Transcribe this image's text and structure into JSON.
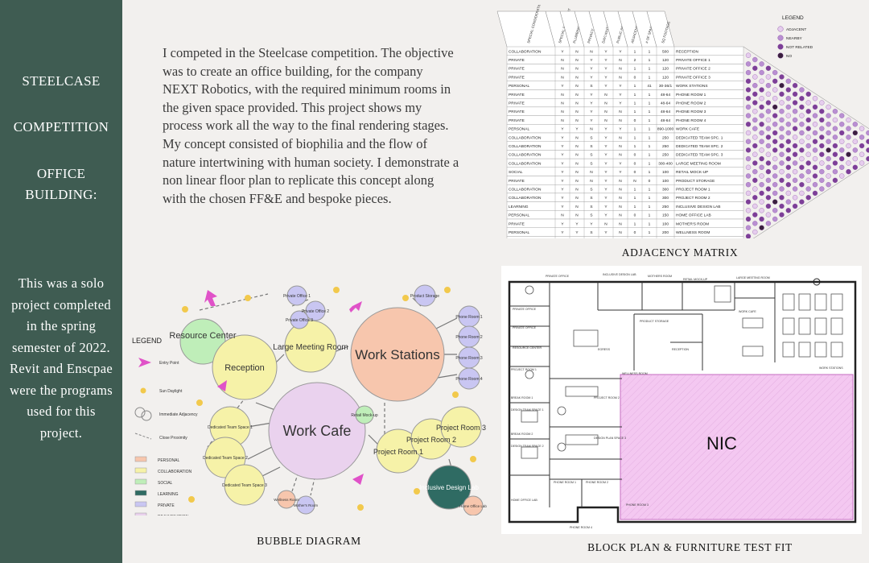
{
  "sidebar": {
    "title1": "STEELCASE",
    "title2": "COMPETITION",
    "title3": "OFFICE",
    "title4": "BUILDING:",
    "note": "This was a solo project completed in the spring semester of 2022. Revit and Enscpae were the programs used for this project."
  },
  "intro": "I competed in the Steelcase competition. The objective was to create an office building, for the company NEXT Robotics, with the required minimum rooms in the given space provided. This project shows my process work all the way to the final rendering stages. My concept consisted of biophilia and the flow of nature intertwining with human society. I demonstrate a non linear floor plan to replicate this concept along with the chosen FF&E and bespoke pieces.",
  "captions": {
    "matrix": "ADJACENCY MATRIX",
    "bubble": "BUBBLE DIAGRAM",
    "plan": "BLOCK PLAN & FURNITURE TEST FIT"
  },
  "matrix": {
    "headers": [
      "SPECIAL CONSIDERATIONS",
      "SPECIAL EQUIPMENT",
      "PLUMBING",
      "PRIVACY",
      "DAYLIGHT/VIEW",
      "PUBLIC ACCESS",
      "ADJACENCIES",
      "# OF SPACES",
      "SQ FOOTAGE"
    ],
    "legend_title": "LEGEND",
    "legend": [
      {
        "label": "ADJACENT",
        "color": "#e6cdee"
      },
      {
        "label": "NEARBY",
        "color": "#b98fd2"
      },
      {
        "label": "NOT RELATED",
        "color": "#7d3f98"
      },
      {
        "label": "NO",
        "color": "#3a1f3e"
      }
    ],
    "rows": [
      [
        "COLLABORATION",
        "Y",
        "N",
        "N",
        "Y",
        "Y",
        "1",
        "1",
        "500",
        "RECEPTION"
      ],
      [
        "PRIVATE",
        "N",
        "N",
        "Y",
        "Y",
        "N",
        "2",
        "1",
        "120",
        "PRIVATE OFFICE 1"
      ],
      [
        "PRIVATE",
        "N",
        "N",
        "Y",
        "Y",
        "N",
        "1",
        "1",
        "120",
        "PRIVATE OFFICE 2"
      ],
      [
        "PRIVATE",
        "N",
        "N",
        "Y",
        "Y",
        "N",
        "0",
        "1",
        "120",
        "PRIVATE OFFICE 3"
      ],
      [
        "PERSONAL",
        "Y",
        "N",
        "S",
        "Y",
        "Y",
        "1",
        "41",
        "30-36/1",
        "WORK STATIONS"
      ],
      [
        "PRIVATE",
        "N",
        "N",
        "Y",
        "N",
        "Y",
        "1",
        "1",
        "48-64",
        "PHONE ROOM 1"
      ],
      [
        "PRIVATE",
        "N",
        "N",
        "Y",
        "N",
        "Y",
        "1",
        "1",
        "48-64",
        "PHONE ROOM 2"
      ],
      [
        "PRIVATE",
        "N",
        "N",
        "Y",
        "N",
        "N",
        "1",
        "1",
        "48-64",
        "PHONE ROOM 3"
      ],
      [
        "PRIVATE",
        "N",
        "N",
        "Y",
        "N",
        "N",
        "0",
        "1",
        "48-64",
        "PHONE ROOM 4"
      ],
      [
        "PERSONAL",
        "Y",
        "Y",
        "N",
        "Y",
        "Y",
        "1",
        "1",
        "890-1000",
        "WORK CAFE"
      ],
      [
        "COLLABORATION",
        "Y",
        "N",
        "S",
        "Y",
        "N",
        "1",
        "1",
        "250",
        "DEDICATED TEAM SPC. 1"
      ],
      [
        "COLLABORATION",
        "Y",
        "N",
        "S",
        "Y",
        "N",
        "1",
        "1",
        "250",
        "DEDICATED TEAM SPC. 2"
      ],
      [
        "COLLABORATION",
        "Y",
        "N",
        "S",
        "Y",
        "N",
        "0",
        "1",
        "250",
        "DEDICATED TEAM SPC. 3"
      ],
      [
        "COLLABORATION",
        "Y",
        "N",
        "S",
        "Y",
        "Y",
        "0",
        "1",
        "300-400",
        "LARGE MEETING ROOM"
      ],
      [
        "SOCIAL",
        "Y",
        "N",
        "N",
        "Y",
        "Y",
        "0",
        "1",
        "100",
        "RETAIL MOCK-UP"
      ],
      [
        "PRIVATE",
        "Y",
        "N",
        "N",
        "Y",
        "N",
        "N",
        "0",
        "100",
        "PRODUCT STORAGE"
      ],
      [
        "COLLABORATION",
        "Y",
        "N",
        "S",
        "Y",
        "N",
        "1",
        "1",
        "300",
        "PROJECT ROOM 1"
      ],
      [
        "COLLABORATION",
        "Y",
        "N",
        "S",
        "Y",
        "N",
        "1",
        "1",
        "300",
        "PROJECT ROOM 2"
      ],
      [
        "LEARNING",
        "Y",
        "N",
        "S",
        "Y",
        "N",
        "1",
        "1",
        "250",
        "INCLUSIVE DESIGN LAB"
      ],
      [
        "PERSONAL",
        "N",
        "N",
        "S",
        "Y",
        "N",
        "0",
        "1",
        "150",
        "HOME OFFICE LAB"
      ],
      [
        "PRIVATE",
        "Y",
        "Y",
        "Y",
        "N",
        "N",
        "1",
        "1",
        "100",
        "MOTHER'S ROOM"
      ],
      [
        "PERSONAL",
        "Y",
        "Y",
        "S",
        "Y",
        "N",
        "0",
        "1",
        "200",
        "WELLNESS ROOM"
      ],
      [
        "SOCIAL",
        "Y",
        "N",
        "N",
        "Y",
        "Y",
        "1",
        "1",
        "200",
        "RESOURCE CENTER"
      ]
    ]
  },
  "bubble": {
    "legend_title": "LEGEND",
    "symbols": [
      "Entry Point",
      "Sun Daylight",
      "Immediate Adjacency",
      "Close Proximity"
    ],
    "categories": [
      {
        "label": "PERSONAL",
        "color": "#f7c6ad"
      },
      {
        "label": "COLLABORATION",
        "color": "#f6f2a8"
      },
      {
        "label": "SOCIAL",
        "color": "#bfeeb9"
      },
      {
        "label": "LEARNING",
        "color": "#2f6b63"
      },
      {
        "label": "PRIVATE",
        "color": "#c9c6f2"
      },
      {
        "label": "REJUVENATION",
        "color": "#ead2ee"
      }
    ],
    "labels": {
      "resource": "Resource Center",
      "reception": "Reception",
      "meeting": "Large Meeting Room",
      "stations": "Work Stations",
      "cafe": "Work Cafe",
      "po1": "Private Office 1",
      "po2": "Private Office 2",
      "po3": "Private Office 3",
      "storage": "Product Storage",
      "ph1": "Phone Room 1",
      "ph2": "Phone Room 2",
      "ph3": "Phone Room 3",
      "ph4": "Phone Room 4",
      "retail": "Retail Mock-up",
      "pr1": "Project Room 1",
      "pr2": "Project Room 2",
      "pr3": "Project Room 3",
      "dt1": "Dedicated Team Space 1",
      "dt2": "Dedicated Team Space 2",
      "dt3": "Dedicated Team Space 3",
      "wellness": "Wellness Room",
      "mothers": "Mother's Room",
      "lab": "Inclusive Design Lab",
      "homelab": "Home Office Lab"
    }
  },
  "plan": {
    "nic": "NIC",
    "rooms": [
      "PRIVATE OFFICE",
      "INCLUSIVE DESIGN LAB",
      "MOTHERS ROOM",
      "RETAIL MOCK-UP",
      "LARGE MEETING ROOM",
      "PRIVATE OFFICE",
      "PRIVATE OFFICE",
      "RESOURCE CENTER",
      "PRODUCT STORAGE",
      "RECEPTION",
      "WORK CAFE",
      "WORK STATIONS",
      "PROJECT ROOM 1",
      "BREAK ROOM 1",
      "DESIGN TEAM SPACE 1",
      "BREAK ROOM 2",
      "DESIGN TEAM SPACE 2",
      "HOME OFFICE LAB",
      "PHONE ROOM 1",
      "PHONE ROOM 2",
      "PHONE ROOM 3",
      "PHONE ROOM 4",
      "WELLNESS ROOM",
      "PROJECT ROOM 2",
      "DESIGN PLAN SPACE 3",
      "EGRESS"
    ]
  }
}
